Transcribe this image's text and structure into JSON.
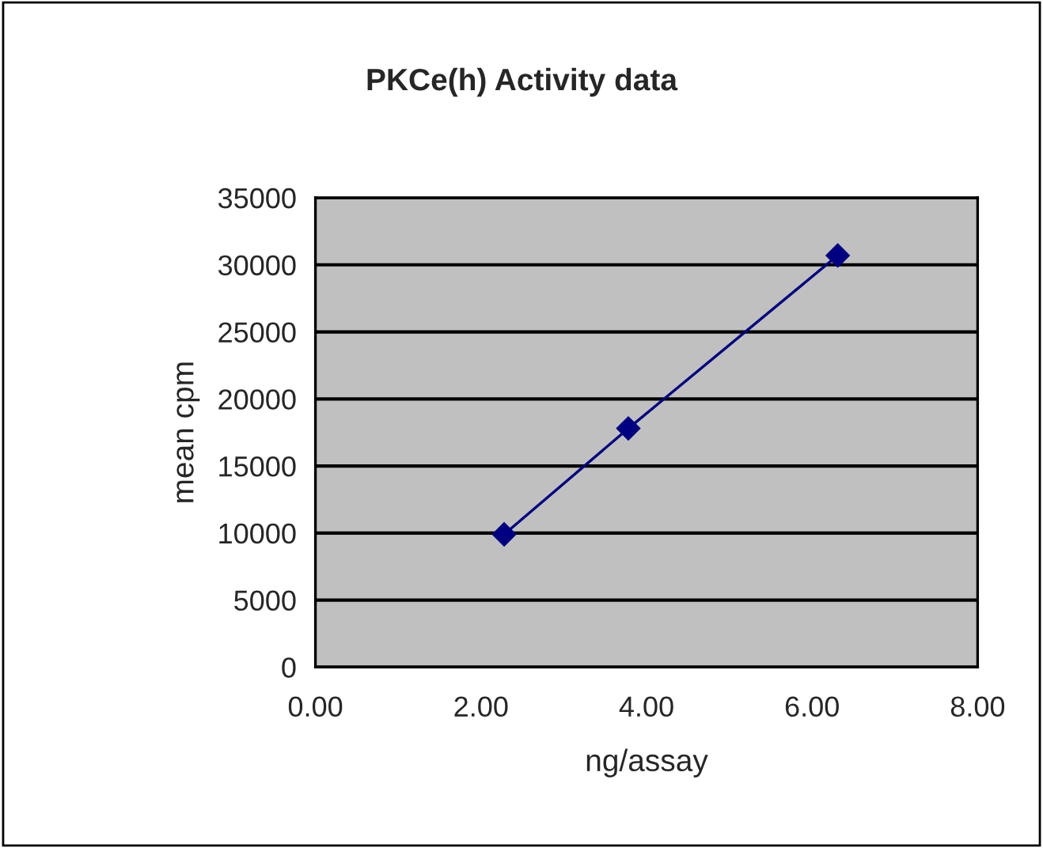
{
  "chart_data": {
    "type": "line",
    "title": "PKCe(h) Activity data",
    "xlabel": "ng/assay",
    "ylabel": "mean cpm",
    "x": [
      2.28,
      3.78,
      6.31
    ],
    "series": [
      {
        "color": "#000080",
        "values": [
          9900,
          17800,
          30700
        ]
      }
    ],
    "xlim": [
      0,
      8
    ],
    "xticks": [
      {
        "value": 0,
        "label": "0.00"
      },
      {
        "value": 2,
        "label": "2.00"
      },
      {
        "value": 4,
        "label": "4.00"
      },
      {
        "value": 6,
        "label": "6.00"
      },
      {
        "value": 8,
        "label": "8.00"
      }
    ],
    "ylim": [
      0,
      35000
    ],
    "yticks": [
      0,
      5000,
      10000,
      15000,
      20000,
      25000,
      30000,
      35000
    ],
    "grid": "y",
    "marker": "diamond",
    "line_style": "solid",
    "legend": false
  }
}
